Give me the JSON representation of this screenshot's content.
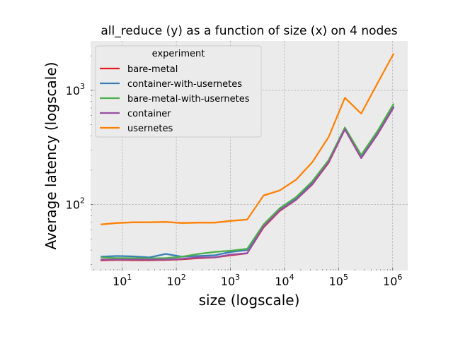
{
  "chart_data": {
    "type": "line",
    "title": "all_reduce (y) as a function of size (x) on 4 nodes",
    "xlabel": "size (logscale)",
    "ylabel": "Average latency (logscale)",
    "xscale": "log",
    "yscale": "log",
    "xlim": [
      2.6,
      1900000
    ],
    "ylim": [
      26.5,
      2700
    ],
    "grid": true,
    "legend": {
      "title": "experiment",
      "placement": "upper-left"
    },
    "xticks": [
      {
        "base": "10",
        "exp": "1",
        "value": 10
      },
      {
        "base": "10",
        "exp": "2",
        "value": 100
      },
      {
        "base": "10",
        "exp": "3",
        "value": 1000
      },
      {
        "base": "10",
        "exp": "4",
        "value": 10000
      },
      {
        "base": "10",
        "exp": "5",
        "value": 100000
      },
      {
        "base": "10",
        "exp": "6",
        "value": 1000000
      }
    ],
    "yticks": [
      {
        "base": "10",
        "exp": "2",
        "value": 100
      },
      {
        "base": "10",
        "exp": "3",
        "value": 1000
      }
    ],
    "x": [
      4,
      8,
      16,
      32,
      64,
      128,
      256,
      512,
      1024,
      2048,
      4096,
      8192,
      16384,
      32768,
      65536,
      131072,
      262144,
      524288,
      1048576
    ],
    "series": [
      {
        "name": "bare-metal",
        "color": "#e41a1c",
        "values": [
          32.5,
          32.8,
          32.6,
          32.6,
          32.8,
          33.2,
          34.0,
          34.5,
          36.0,
          37.5,
          63,
          88,
          110,
          150,
          232,
          455,
          255,
          410,
          710
        ]
      },
      {
        "name": "container-with-usernetes",
        "color": "#377eb8",
        "values": [
          35.0,
          35.5,
          35.2,
          34.5,
          37.0,
          35.0,
          35.5,
          36.0,
          38.5,
          40.0,
          65,
          91,
          113,
          155,
          238,
          462,
          260,
          420,
          725
        ]
      },
      {
        "name": "bare-metal-with-usernetes",
        "color": "#4daf4a",
        "values": [
          34.5,
          34.0,
          34.0,
          33.8,
          34.0,
          35.0,
          37.0,
          38.5,
          39.5,
          41.0,
          67,
          93,
          116,
          160,
          245,
          472,
          272,
          440,
          765
        ]
      },
      {
        "name": "container",
        "color": "#984ea3",
        "values": [
          33.0,
          33.0,
          33.0,
          33.0,
          33.0,
          33.5,
          34.5,
          34.5,
          36.5,
          37.5,
          64,
          89,
          110,
          151,
          235,
          455,
          255,
          412,
          712
        ]
      },
      {
        "name": "usernetes",
        "color": "#ff7f00",
        "values": [
          67,
          69,
          70,
          70,
          70.5,
          69,
          69.5,
          69.5,
          72,
          74,
          120,
          133,
          165,
          235,
          390,
          860,
          625,
          1150,
          2100
        ]
      }
    ]
  }
}
